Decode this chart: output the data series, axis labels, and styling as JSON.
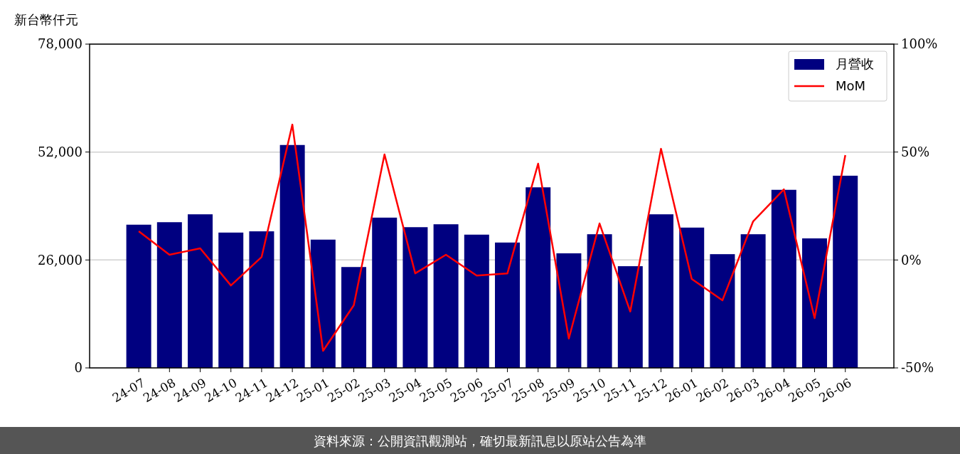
{
  "chart_data": {
    "type": "bar",
    "ylabel": "新台幣仟元",
    "categories": [
      "24-07",
      "24-08",
      "24-09",
      "24-10",
      "24-11",
      "24-12",
      "25-01",
      "25-02",
      "25-03",
      "25-04",
      "25-05",
      "25-06",
      "25-07",
      "25-08",
      "25-09",
      "25-10",
      "25-11",
      "25-12",
      "26-01",
      "26-02",
      "26-03",
      "26-04",
      "26-05",
      "26-06"
    ],
    "series": [
      {
        "name": "月營收",
        "color": "#000080",
        "values": [
          34500,
          35100,
          37000,
          32600,
          32900,
          53700,
          30900,
          24300,
          36200,
          33900,
          34600,
          32100,
          30200,
          43500,
          27600,
          32200,
          24500,
          37000,
          33800,
          27400,
          32200,
          42900,
          31200,
          46300
        ]
      },
      {
        "name": "MoM",
        "type": "line",
        "axis": "y2",
        "color": "#ff0000",
        "values": [
          13.3,
          2.4,
          5.4,
          -11.8,
          1.4,
          62.7,
          -42.1,
          -21.0,
          48.9,
          -6.2,
          2.4,
          -7.2,
          -6.2,
          44.6,
          -36.4,
          16.9,
          -23.9,
          51.5,
          -8.8,
          -18.7,
          17.9,
          32.7,
          -26.9,
          48.6
        ]
      }
    ],
    "ylim": [
      0,
      78000
    ],
    "yticks": [
      {
        "value": 0,
        "label": "0"
      },
      {
        "value": 26000,
        "label": "26,000"
      },
      {
        "value": 52000,
        "label": "52,000"
      },
      {
        "value": 78000,
        "label": "78,000"
      }
    ],
    "y2lim": [
      -50,
      100
    ],
    "y2ticks": [
      {
        "value": -50,
        "label": "-50%"
      },
      {
        "value": 0,
        "label": "0%"
      },
      {
        "value": 50,
        "label": "50%"
      },
      {
        "value": 100,
        "label": "100%"
      }
    ],
    "grid": "y",
    "legend": "top right",
    "marker": "none",
    "line_style": "solid",
    "annotations": [
      "資料來源：公開資訊觀測站，確切最新訊息以原站公告為準"
    ]
  }
}
